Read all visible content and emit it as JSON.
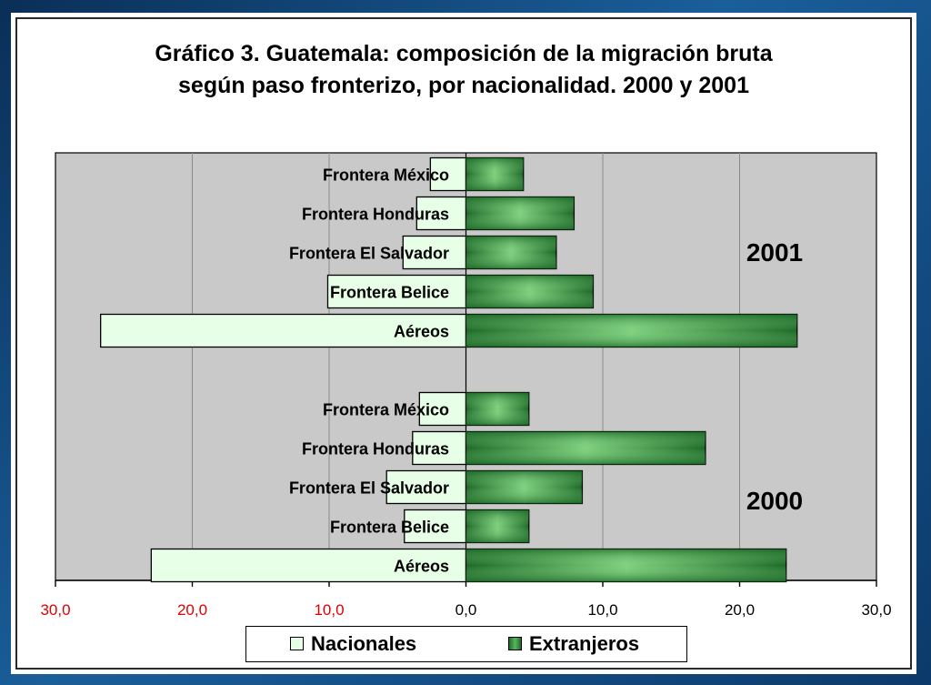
{
  "chart_data": {
    "type": "bar",
    "orientation": "horizontal",
    "title": "Gráfico 3. Guatemala: composición de la migración bruta según paso fronterizo, por nacionalidad. 2000 y 2001",
    "xlabel": "",
    "ylabel": "",
    "xlim": [
      -30,
      30
    ],
    "x_ticks": [
      "30,0",
      "20,0",
      "10,0",
      "0,0",
      "10,0",
      "20,0",
      "30,0"
    ],
    "grid": true,
    "legend_position": "bottom",
    "categories": [
      "Frontera México",
      "Frontera Honduras",
      "Frontera El Salvador",
      "Frontera Belice",
      "Aéreos",
      "",
      "Frontera México",
      "Frontera Honduras",
      "Frontera El Salvador",
      "Frontera Belice",
      "Aéreos"
    ],
    "group_labels": [
      {
        "label": "2001",
        "first_row": 0,
        "last_row": 4
      },
      {
        "label": "2000",
        "first_row": 6,
        "last_row": 10
      }
    ],
    "series": [
      {
        "name": "Nacionales",
        "color": "#e6ffe6",
        "values": [
          -2.6,
          -3.6,
          -4.6,
          -10.1,
          -26.7,
          null,
          -3.4,
          -3.9,
          -5.8,
          -4.5,
          -23.0
        ]
      },
      {
        "name": "Extranjeros",
        "color": "#2e8b3a",
        "values": [
          4.2,
          7.9,
          6.6,
          9.3,
          24.2,
          null,
          4.6,
          17.5,
          8.5,
          4.6,
          23.4
        ]
      }
    ]
  }
}
